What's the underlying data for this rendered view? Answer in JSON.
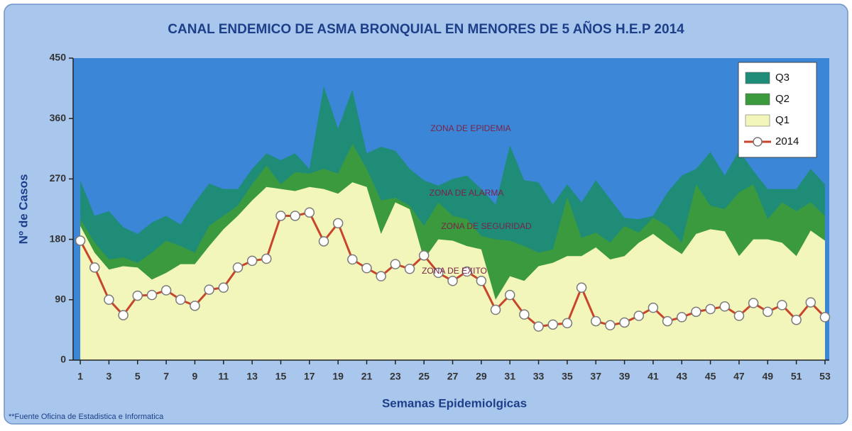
{
  "chart_data": {
    "type": "line",
    "title": "CANAL ENDEMICO DE ASMA BRONQUIAL EN MENORES DE 5 AÑOS  H.E.P 2014",
    "x_label": "Semanas Epidemiolgicas",
    "y_label": "Nº de Casos",
    "footnote": "**Fuente Oficina de Estadistica e Informatica",
    "annotations": [
      "ZONA DE EPIDEMIA",
      "ZONA DE ALARMA",
      "ZONA DE SEGURIDAD",
      "ZONA DE EXITO"
    ],
    "background_color": "#3b86d6",
    "x": [
      1,
      2,
      3,
      4,
      5,
      6,
      7,
      8,
      9,
      10,
      11,
      12,
      13,
      14,
      15,
      16,
      17,
      18,
      19,
      20,
      21,
      22,
      23,
      24,
      25,
      26,
      27,
      28,
      29,
      30,
      31,
      32,
      33,
      34,
      35,
      36,
      37,
      38,
      39,
      40,
      41,
      42,
      43,
      44,
      45,
      46,
      47,
      48,
      49,
      50,
      51,
      52,
      53
    ],
    "xlim": [
      0.5,
      53.3
    ],
    "xticks": [
      1,
      3,
      5,
      7,
      9,
      11,
      13,
      15,
      17,
      19,
      21,
      23,
      25,
      27,
      29,
      31,
      33,
      35,
      37,
      39,
      41,
      43,
      45,
      47,
      49,
      51,
      53
    ],
    "ylim": [
      0,
      450
    ],
    "yticks": [
      0,
      90,
      180,
      270,
      360,
      450
    ],
    "grid": false,
    "legend": "upper right",
    "series": [
      {
        "name": "Q3",
        "color": "#1f8c78",
        "style": "area",
        "values": [
          268,
          215,
          222,
          198,
          188,
          205,
          215,
          202,
          235,
          263,
          255,
          255,
          285,
          308,
          298,
          308,
          285,
          408,
          345,
          403,
          308,
          318,
          312,
          285,
          268,
          260,
          270,
          275,
          255,
          232,
          320,
          268,
          265,
          232,
          262,
          235,
          268,
          240,
          212,
          210,
          215,
          250,
          275,
          285,
          310,
          275,
          312,
          282,
          255,
          255,
          255,
          285,
          262
        ]
      },
      {
        "name": "Q2",
        "color": "#3b9a3e",
        "style": "area",
        "values": [
          210,
          175,
          150,
          153,
          145,
          160,
          178,
          170,
          160,
          200,
          215,
          230,
          262,
          290,
          262,
          280,
          278,
          285,
          278,
          322,
          285,
          238,
          242,
          230,
          200,
          235,
          215,
          210,
          185,
          180,
          178,
          170,
          160,
          165,
          243,
          182,
          190,
          175,
          200,
          190,
          212,
          200,
          175,
          262,
          230,
          225,
          250,
          262,
          210,
          235,
          222,
          235,
          215
        ]
      },
      {
        "name": "Q1",
        "color": "#f3f6ba",
        "style": "area",
        "values": [
          200,
          160,
          135,
          140,
          138,
          120,
          130,
          143,
          143,
          170,
          195,
          215,
          238,
          258,
          255,
          252,
          258,
          255,
          248,
          265,
          258,
          188,
          235,
          225,
          150,
          180,
          178,
          170,
          165,
          90,
          125,
          118,
          140,
          145,
          155,
          155,
          168,
          150,
          155,
          175,
          188,
          172,
          158,
          188,
          195,
          192,
          155,
          180,
          180,
          175,
          155,
          193,
          178
        ]
      },
      {
        "name": "2014",
        "color": "#c8452d",
        "style": "line",
        "values": [
          178,
          138,
          90,
          67,
          96,
          97,
          104,
          90,
          81,
          105,
          108,
          138,
          148,
          151,
          215,
          215,
          220,
          177,
          204,
          150,
          137,
          125,
          143,
          136,
          156,
          130,
          118,
          132,
          118,
          75,
          97,
          68,
          50,
          53,
          55,
          108,
          58,
          52,
          56,
          66,
          78,
          58,
          64,
          72,
          76,
          80,
          66,
          85,
          72,
          82,
          60,
          86,
          64
        ]
      }
    ]
  }
}
